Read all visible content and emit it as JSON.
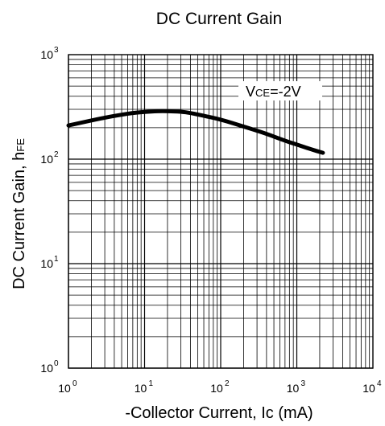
{
  "chart_data": {
    "type": "line",
    "title": "DC Current Gain",
    "xlabel": "-Collector Current, Ic (mA)",
    "ylabel": {
      "main": "DC Current Gain, h",
      "sub": "FE"
    },
    "xscale": "log",
    "yscale": "log",
    "xlim": [
      1,
      10000
    ],
    "ylim": [
      1,
      1000
    ],
    "grid": true,
    "x_tick_labels": [
      {
        "base": "10",
        "exp": "0"
      },
      {
        "base": "10",
        "exp": "1"
      },
      {
        "base": "10",
        "exp": "2"
      },
      {
        "base": "10",
        "exp": "3"
      },
      {
        "base": "10",
        "exp": "4"
      }
    ],
    "y_tick_labels": [
      {
        "base": "10",
        "exp": "0"
      },
      {
        "base": "10",
        "exp": "1"
      },
      {
        "base": "10",
        "exp": "2"
      },
      {
        "base": "10",
        "exp": "3"
      }
    ],
    "annotation": {
      "prefix": "V",
      "sub": "CE",
      "suffix": "=-2V"
    },
    "series": [
      {
        "x": [
          1,
          2,
          4,
          7,
          10,
          15,
          20,
          30,
          40,
          60,
          100,
          200,
          400,
          700,
          1000,
          1500,
          2200
        ],
        "y": [
          210,
          235,
          260,
          277,
          283,
          288,
          288,
          285,
          277,
          260,
          240,
          205,
          175,
          150,
          138,
          125,
          115
        ]
      }
    ]
  }
}
